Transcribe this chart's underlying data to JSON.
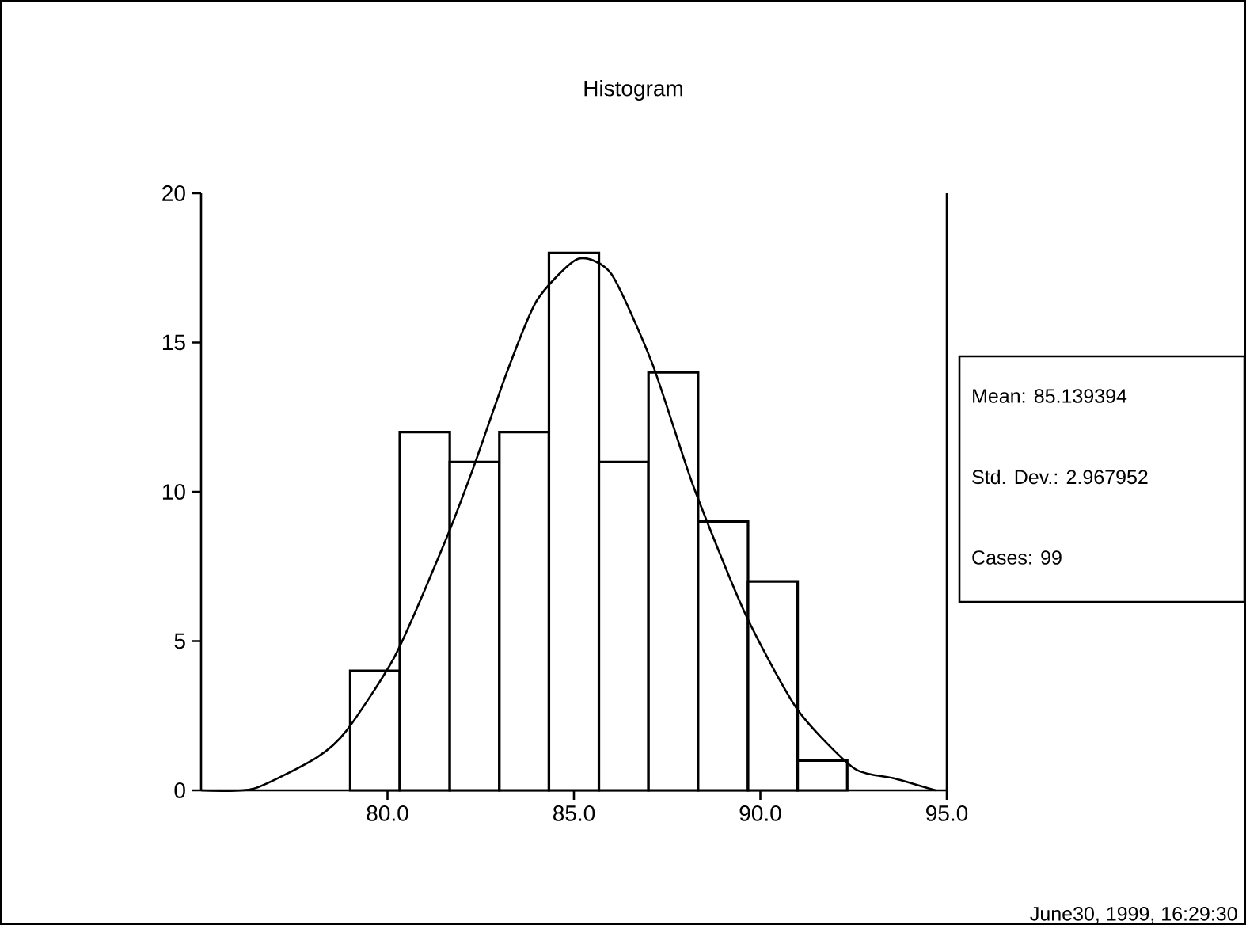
{
  "chart_data": {
    "type": "histogram",
    "title": "Histogram",
    "bins": [
      79.0,
      80.33,
      81.67,
      83.0,
      84.33,
      85.67,
      87.0,
      88.33,
      89.67,
      91.0,
      92.33
    ],
    "values": [
      4,
      12,
      11,
      12,
      18,
      11,
      14,
      9,
      7,
      1
    ],
    "color": "#ffffff",
    "series": [
      {
        "type": "line",
        "color": "#000000",
        "x": [
          75.0,
          76.4,
          78.1,
          78.9,
          80.2,
          81.5,
          82.3,
          83.2,
          84.0,
          85.1,
          86.0,
          87.1,
          88.2,
          89.6,
          91.0,
          92.5,
          93.6,
          94.7
        ],
        "values": [
          0.0,
          0.05,
          1.1,
          2.0,
          4.5,
          8.2,
          10.8,
          14.0,
          16.4,
          17.8,
          17.3,
          14.3,
          10.2,
          5.9,
          2.7,
          0.75,
          0.4,
          0.0
        ]
      }
    ],
    "xlim": [
      75,
      95
    ],
    "xticks": [
      {
        "value": 80,
        "label": "80.0"
      },
      {
        "value": 85,
        "label": "85.0"
      },
      {
        "value": 90,
        "label": "90.0"
      },
      {
        "value": 95,
        "label": "95.0"
      }
    ],
    "ylim": [
      0,
      20
    ],
    "yticks": [
      0,
      5,
      10,
      15,
      20
    ],
    "annotations": [
      "Mean: 85.139394",
      "Std. Dev.: 2.967952",
      "Cases: 99",
      "June30, 1999, 16:29:30"
    ]
  }
}
